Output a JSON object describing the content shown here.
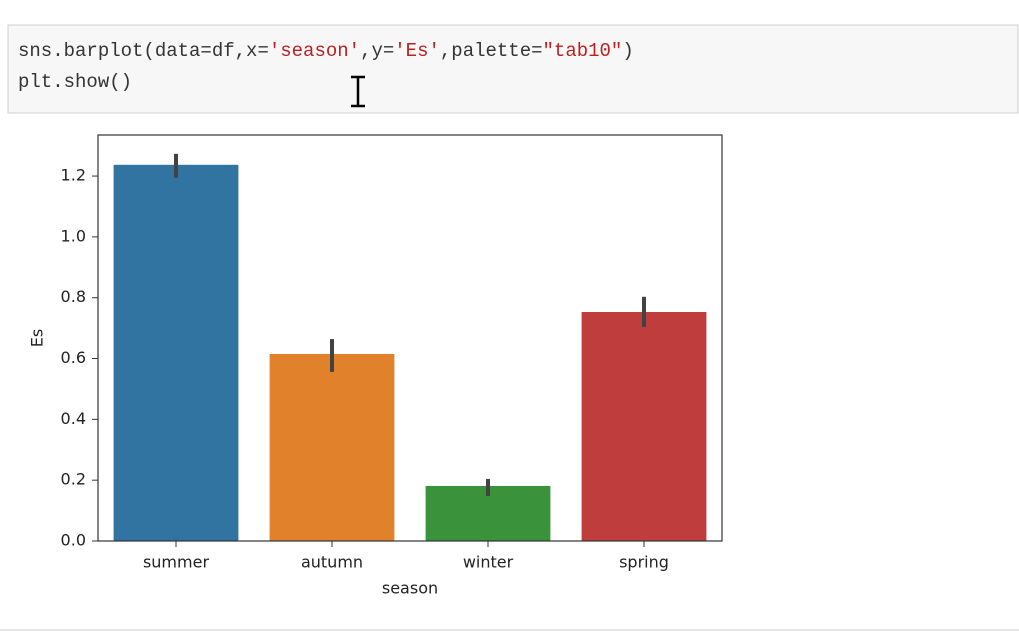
{
  "code": {
    "lines": [
      [
        "sns.barplot(data=df,x=",
        "'season'",
        ",y=",
        "'Es'",
        ",palette=",
        "\"tab10\"",
        ")"
      ],
      [
        "plt.show()"
      ]
    ]
  },
  "chart_data": {
    "type": "bar",
    "x_label": "season",
    "y_label": "Es",
    "categories": [
      "summer",
      "autumn",
      "winter",
      "spring"
    ],
    "values": [
      1.237,
      0.615,
      0.181,
      0.753
    ],
    "ci": [
      [
        1.194,
        1.273
      ],
      [
        0.556,
        0.664
      ],
      [
        0.148,
        0.204
      ],
      [
        0.704,
        0.803
      ]
    ],
    "colors": [
      "#3274a1",
      "#e1812c",
      "#3a923a",
      "#c03d3e"
    ],
    "ylim": [
      0,
      1.335
    ],
    "yticks": [
      {
        "value": 0,
        "label": "0.0"
      },
      0.2,
      0.4,
      0.6,
      0.8,
      {
        "value": 1,
        "label": "1.0"
      },
      1.2
    ],
    "grid": false
  }
}
